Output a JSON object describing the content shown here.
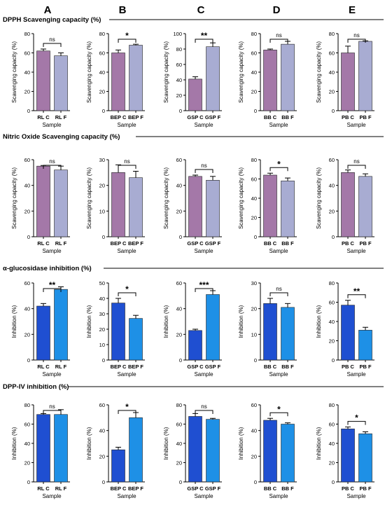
{
  "column_labels": [
    "A",
    "B",
    "C",
    "D",
    "E"
  ],
  "section_titles": [
    "DPPH Scavenging capacity (%)",
    "Nitric Oxide Scavenging capacity (%)",
    "α-glucosidase inhibition (%)",
    "DPP-IV inhibition (%)"
  ],
  "colors": {
    "purple_control": "#a478a8",
    "purple_fermented": "#a8acd2",
    "blue_control": "#1f4fd1",
    "blue_fermented": "#1e90e6",
    "axis": "#000000"
  },
  "chart_data": [
    {
      "type": "bar",
      "section": 0,
      "column": 0,
      "categories": [
        "RL C",
        "RL F"
      ],
      "values": [
        62,
        57
      ],
      "errors": [
        2,
        3
      ],
      "ylim": [
        0,
        80
      ],
      "yticks": [
        0,
        20,
        40,
        60,
        80
      ],
      "ylabel": "Scavenging capacity (%)",
      "xlabel": "Sample",
      "significance": "ns"
    },
    {
      "type": "bar",
      "section": 0,
      "column": 1,
      "categories": [
        "BEP C",
        "BEP F"
      ],
      "values": [
        60,
        68
      ],
      "errors": [
        3,
        1
      ],
      "ylim": [
        0,
        80
      ],
      "yticks": [
        0,
        20,
        40,
        60,
        80
      ],
      "ylabel": "Scavenging capacity (%)",
      "xlabel": "Sample",
      "significance": "*"
    },
    {
      "type": "bar",
      "section": 0,
      "column": 2,
      "categories": [
        "GSP C",
        "GSP F"
      ],
      "values": [
        41,
        83
      ],
      "errors": [
        3,
        5
      ],
      "ylim": [
        0,
        100
      ],
      "yticks": [
        0,
        20,
        40,
        60,
        80,
        100
      ],
      "ylabel": "Scavenging capacity (%)",
      "xlabel": "Sample",
      "significance": "**"
    },
    {
      "type": "bar",
      "section": 0,
      "column": 3,
      "categories": [
        "BB C",
        "BB F"
      ],
      "values": [
        63,
        69
      ],
      "errors": [
        1,
        3
      ],
      "ylim": [
        0,
        80
      ],
      "yticks": [
        0,
        20,
        40,
        60,
        80
      ],
      "ylabel": "Scavenging capacity (%)",
      "xlabel": "Sample",
      "significance": "ns"
    },
    {
      "type": "bar",
      "section": 0,
      "column": 4,
      "categories": [
        "PB C",
        "PB F"
      ],
      "values": [
        60,
        72
      ],
      "errors": [
        7,
        0.5
      ],
      "ylim": [
        0,
        80
      ],
      "yticks": [
        0,
        20,
        40,
        60,
        80
      ],
      "ylabel": "Scavenging capacity (%)",
      "xlabel": "Sample",
      "significance": "ns"
    },
    {
      "type": "bar",
      "section": 1,
      "column": 0,
      "categories": [
        "RL C",
        "RL F"
      ],
      "values": [
        55,
        52
      ],
      "errors": [
        0.5,
        3
      ],
      "ylim": [
        0,
        60
      ],
      "yticks": [
        0,
        20,
        40,
        60
      ],
      "ylabel": "Scavenging capacity (%)",
      "xlabel": "Sample",
      "significance": "ns"
    },
    {
      "type": "bar",
      "section": 1,
      "column": 1,
      "categories": [
        "BEP C",
        "BEP F"
      ],
      "values": [
        25,
        23
      ],
      "errors": [
        3,
        2.5
      ],
      "ylim": [
        0,
        30
      ],
      "yticks": [
        0,
        10,
        20,
        30
      ],
      "ylabel": "Scavenging capacity (%)",
      "xlabel": "Sample",
      "significance": "ns"
    },
    {
      "type": "bar",
      "section": 1,
      "column": 2,
      "categories": [
        "GSP C",
        "GSP F"
      ],
      "values": [
        47,
        44
      ],
      "errors": [
        1,
        3
      ],
      "ylim": [
        0,
        60
      ],
      "yticks": [
        0,
        20,
        40,
        60
      ],
      "ylabel": "Scavenging capacity (%)",
      "xlabel": "Sample",
      "significance": "ns"
    },
    {
      "type": "bar",
      "section": 1,
      "column": 3,
      "categories": [
        "BB C",
        "BB F"
      ],
      "values": [
        64,
        58
      ],
      "errors": [
        2,
        3
      ],
      "ylim": [
        0,
        80
      ],
      "yticks": [
        0,
        20,
        40,
        60,
        80
      ],
      "ylabel": "Scavenging capacity (%)",
      "xlabel": "Sample",
      "significance": "*"
    },
    {
      "type": "bar",
      "section": 1,
      "column": 4,
      "categories": [
        "PB C",
        "PB F"
      ],
      "values": [
        50,
        47
      ],
      "errors": [
        2,
        2
      ],
      "ylim": [
        0,
        60
      ],
      "yticks": [
        0,
        20,
        40,
        60
      ],
      "ylabel": "Scavenging capacity (%)",
      "xlabel": "Sample",
      "significance": "ns"
    },
    {
      "type": "bar",
      "section": 2,
      "column": 0,
      "categories": [
        "RL C",
        "RL F"
      ],
      "values": [
        42,
        55
      ],
      "errors": [
        2,
        2
      ],
      "ylim": [
        0,
        60
      ],
      "yticks": [
        0,
        20,
        40,
        60
      ],
      "ylabel": "Inhibition (%)",
      "xlabel": "Sample",
      "significance": "**"
    },
    {
      "type": "bar",
      "section": 2,
      "column": 1,
      "categories": [
        "BEP C",
        "BEP F"
      ],
      "values": [
        37,
        27
      ],
      "errors": [
        3,
        2
      ],
      "ylim": [
        0,
        50
      ],
      "yticks": [
        0,
        10,
        20,
        30,
        40,
        50
      ],
      "ylabel": "Inhibition (%)",
      "xlabel": "Sample",
      "significance": "*"
    },
    {
      "type": "bar",
      "section": 2,
      "column": 2,
      "categories": [
        "GSP C",
        "GSP F"
      ],
      "values": [
        23,
        51
      ],
      "errors": [
        1,
        3
      ],
      "ylim": [
        0,
        60
      ],
      "yticks": [
        0,
        20,
        40,
        60
      ],
      "ylabel": "Inhibition (%)",
      "xlabel": "Sample",
      "significance": "***"
    },
    {
      "type": "bar",
      "section": 2,
      "column": 3,
      "categories": [
        "BB C",
        "BB F"
      ],
      "values": [
        22,
        20.5
      ],
      "errors": [
        2,
        1.5
      ],
      "ylim": [
        0,
        30
      ],
      "yticks": [
        0,
        10,
        20,
        30
      ],
      "ylabel": "Inhibition (%)",
      "xlabel": "Sample",
      "significance": "ns"
    },
    {
      "type": "bar",
      "section": 2,
      "column": 4,
      "categories": [
        "PB C",
        "PB F"
      ],
      "values": [
        57,
        31
      ],
      "errors": [
        5,
        3
      ],
      "ylim": [
        0,
        80
      ],
      "yticks": [
        0,
        20,
        40,
        60,
        80
      ],
      "ylabel": "Inhibition (%)",
      "xlabel": "Sample",
      "significance": "**"
    },
    {
      "type": "bar",
      "section": 3,
      "column": 0,
      "categories": [
        "RL C",
        "RL F"
      ],
      "values": [
        70,
        70
      ],
      "errors": [
        1,
        5
      ],
      "ylim": [
        0,
        80
      ],
      "yticks": [
        0,
        20,
        40,
        60,
        80
      ],
      "ylabel": "Inhibition (%)",
      "xlabel": "Sample",
      "significance": "ns"
    },
    {
      "type": "bar",
      "section": 3,
      "column": 1,
      "categories": [
        "BEP C",
        "BEP F"
      ],
      "values": [
        25,
        50
      ],
      "errors": [
        2,
        4
      ],
      "ylim": [
        0,
        60
      ],
      "yticks": [
        0,
        20,
        40,
        60
      ],
      "ylabel": "Inhibition (%)",
      "xlabel": "Sample",
      "significance": "*"
    },
    {
      "type": "bar",
      "section": 3,
      "column": 2,
      "categories": [
        "GSP C",
        "GSP F"
      ],
      "values": [
        68,
        65
      ],
      "errors": [
        3,
        1
      ],
      "ylim": [
        0,
        80
      ],
      "yticks": [
        0,
        20,
        40,
        60,
        80
      ],
      "ylabel": "Inhibition (%)",
      "xlabel": "Sample",
      "significance": "ns"
    },
    {
      "type": "bar",
      "section": 3,
      "column": 3,
      "categories": [
        "BB C",
        "BB F"
      ],
      "values": [
        48,
        45
      ],
      "errors": [
        1.5,
        1
      ],
      "ylim": [
        0,
        60
      ],
      "yticks": [
        0,
        20,
        40,
        60
      ],
      "ylabel": "Inhibition (%)",
      "xlabel": "Sample",
      "significance": "*"
    },
    {
      "type": "bar",
      "section": 3,
      "column": 4,
      "categories": [
        "PB C",
        "PB F"
      ],
      "values": [
        55,
        50
      ],
      "errors": [
        2,
        2
      ],
      "ylim": [
        0,
        80
      ],
      "yticks": [
        0,
        20,
        40,
        60,
        80
      ],
      "ylabel": "Inhibition (%)",
      "xlabel": "Sample",
      "significance": "*"
    }
  ]
}
